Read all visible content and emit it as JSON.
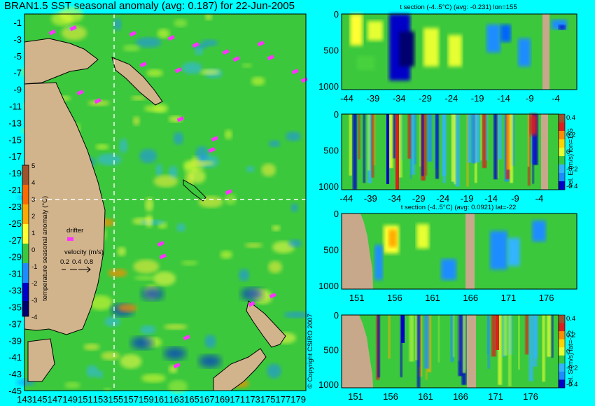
{
  "title": "BRAN1.5 SST seasonal anomaly (avg: 0.187) for 22-Jun-2005",
  "colors": {
    "background": "#00ffff",
    "land": "#d2b48c",
    "ocean": "#3cc83c",
    "warm": "#e6ff32",
    "cool": "#1e8cff",
    "drifter": "#ff32ff"
  },
  "copyright": "© Copyright CSIRO 2007",
  "chart_data": [
    {
      "type": "heatmap",
      "panel": "map",
      "title": "BRAN1.5 SST seasonal anomaly (avg: 0.187) for 22-Jun-2005",
      "average": 0.187,
      "xlim": [
        143,
        180
      ],
      "ylim": [
        -45,
        0
      ],
      "x_ticks": [
        "143",
        "145",
        "147",
        "149",
        "151",
        "153",
        "155",
        "157",
        "159",
        "161",
        "163",
        "165",
        "167",
        "169",
        "171",
        "173",
        "175",
        "177",
        "179"
      ],
      "y_ticks": [
        "-1",
        "-3",
        "-5",
        "-7",
        "-9",
        "-11",
        "-13",
        "-15",
        "-17",
        "-19",
        "-21",
        "-23",
        "-25",
        "-27",
        "-29",
        "-31",
        "-33",
        "-35",
        "-37",
        "-39",
        "-41",
        "-43",
        "-45"
      ],
      "crosshair": {
        "lon": 155,
        "lat": -22
      },
      "colorbar": {
        "label": "temperature seasonal anomaly (°C)",
        "ticks": [
          "5",
          "4",
          "3",
          "2",
          "1",
          "0",
          "-1",
          "-2",
          "-3",
          "-4"
        ],
        "range": [
          -4,
          5
        ]
      },
      "legend": {
        "drifter_label": "drifter",
        "velocity_label": "velocity (m/s)",
        "velocity_values": [
          "0.2",
          "0.4",
          "0.8"
        ]
      }
    },
    {
      "type": "heatmap",
      "panel": "t-section-lon155",
      "title": "t section (-4..5°C) (avg: -0.231) lon=155",
      "average": -0.231,
      "x_ticks": [
        "-44",
        "-39",
        "-34",
        "-29",
        "-24",
        "-19",
        "-14",
        "-9",
        "-4"
      ],
      "y_ticks": [
        "0",
        "500",
        "1000"
      ],
      "xlim": [
        -45,
        0
      ],
      "ylim": [
        1050,
        0
      ]
    },
    {
      "type": "heatmap",
      "panel": "velE-section-lon155",
      "colorbar_label": "vel. E (m/s) lon=155",
      "colorbar_ticks": [
        "0.4",
        "0.2",
        "0",
        "-0.2",
        "-0.4"
      ],
      "x_ticks": [
        "-44",
        "-39",
        "-34",
        "-29",
        "-24",
        "-19",
        "-14",
        "-9",
        "-4"
      ],
      "y_ticks": [
        "0",
        "500",
        "1000"
      ],
      "xlim": [
        -45,
        0
      ],
      "ylim": [
        1050,
        0
      ]
    },
    {
      "type": "heatmap",
      "panel": "t-section-lat-22",
      "title": "t section (-4..5°C) (avg: 0.0921) lat=-22",
      "average": 0.0921,
      "x_ticks": [
        "151",
        "156",
        "161",
        "166",
        "171",
        "176"
      ],
      "y_ticks": [
        "0",
        "500",
        "1000"
      ],
      "xlim": [
        149,
        180
      ],
      "ylim": [
        1050,
        0
      ]
    },
    {
      "type": "heatmap",
      "panel": "velS-section-lat-22",
      "colorbar_label": "vel. S (m/s) lat=-22",
      "colorbar_ticks": [
        "0.4",
        "0.2",
        "0",
        "-0.2",
        "-0.4"
      ],
      "x_ticks": [
        "151",
        "156",
        "161",
        "166",
        "171",
        "176"
      ],
      "y_ticks": [
        "0",
        "500",
        "1000"
      ],
      "xlim": [
        149,
        180
      ],
      "ylim": [
        1050,
        0
      ]
    }
  ]
}
